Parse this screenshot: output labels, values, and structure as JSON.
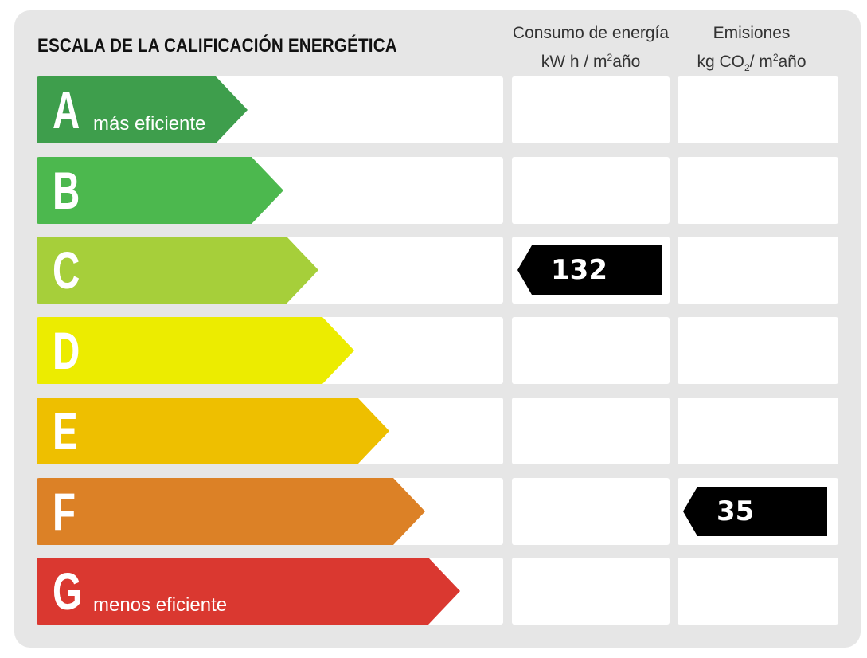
{
  "title": "ESCALA DE LA CALIFICACIÓN ENERGÉTICA",
  "columns": {
    "consumo": {
      "line1": "Consumo de energía",
      "line2_pre": "kW h / m",
      "line2_sup": "2",
      "line2_post": "año"
    },
    "emisiones": {
      "line1": "Emisiones",
      "line2_pre": "kg CO",
      "line2_sub": "2",
      "line2_mid": "/ m",
      "line2_sup": "2",
      "line2_post": "año"
    }
  },
  "ratings": [
    {
      "letter": "A",
      "label": "más eficiente",
      "color": "#3e9e4c"
    },
    {
      "letter": "B",
      "label": "",
      "color": "#4cb84e"
    },
    {
      "letter": "C",
      "label": "",
      "color": "#a6cf3a"
    },
    {
      "letter": "D",
      "label": "",
      "color": "#ecec00"
    },
    {
      "letter": "E",
      "label": "",
      "color": "#eebf00"
    },
    {
      "letter": "F",
      "label": "",
      "color": "#dc8126"
    },
    {
      "letter": "G",
      "label": "menos eficiente",
      "color": "#da3830"
    }
  ],
  "indicators": {
    "consumo": {
      "value": "132",
      "rating": "C"
    },
    "emisiones": {
      "value": "35",
      "rating": "F"
    }
  },
  "marker_color": "#000000"
}
